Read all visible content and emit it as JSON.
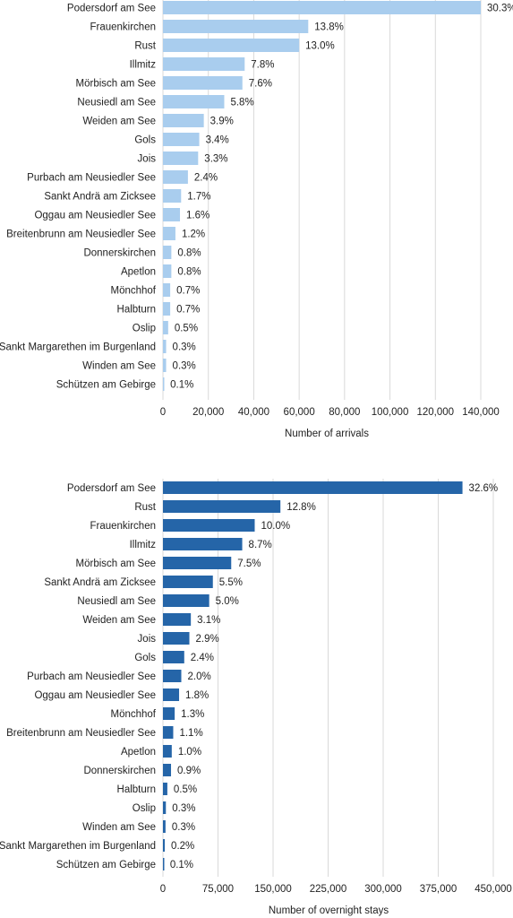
{
  "chart_data": [
    {
      "type": "bar",
      "orientation": "horizontal",
      "xlabel": "Number of arrivals",
      "xlim": [
        0,
        140000
      ],
      "xticks": [
        0,
        20000,
        40000,
        60000,
        80000,
        100000,
        120000,
        140000
      ],
      "xtick_labels": [
        "0",
        "20,000",
        "40,000",
        "60,000",
        "80,000",
        "100,000",
        "120,000",
        "140,000"
      ],
      "grid": true,
      "bar_color": "#a9cdee",
      "categories": [
        "Podersdorf am See",
        "Frauenkirchen",
        "Rust",
        "Illmitz",
        "Mörbisch am See",
        "Neusiedl am See",
        "Weiden am See",
        "Gols",
        "Jois",
        "Purbach am Neusiedler See",
        "Sankt Andrä am Zicksee",
        "Oggau am Neusiedler See",
        "Breitenbrunn am Neusiedler See",
        "Donnerskirchen",
        "Apetlon",
        "Mönchhof",
        "Halbturn",
        "Oslip",
        "Sankt Margarethen im Burgenland",
        "Winden am See",
        "Schützen am Gebirge"
      ],
      "values": [
        140000,
        64000,
        60000,
        36000,
        35000,
        27000,
        18000,
        16000,
        15500,
        11000,
        8000,
        7500,
        5500,
        3700,
        3700,
        3200,
        3200,
        2300,
        1400,
        1400,
        460
      ],
      "labels": [
        "30.3%",
        "13.8%",
        "13.0%",
        "7.8%",
        "7.6%",
        "5.8%",
        "3.9%",
        "3.4%",
        "3.3%",
        "2.4%",
        "1.7%",
        "1.6%",
        "1.2%",
        "0.8%",
        "0.8%",
        "0.7%",
        "0.7%",
        "0.5%",
        "0.3%",
        "0.3%",
        "0.1%"
      ]
    },
    {
      "type": "bar",
      "orientation": "horizontal",
      "xlabel": "Number of overnight stays",
      "xlim": [
        0,
        450000
      ],
      "xticks": [
        0,
        75000,
        150000,
        225000,
        300000,
        375000,
        450000
      ],
      "xtick_labels": [
        "0",
        "75,000",
        "150,000",
        "225,000",
        "300,000",
        "375,000",
        "450,000"
      ],
      "grid": true,
      "bar_color": "#2565a8",
      "categories": [
        "Podersdorf am See",
        "Rust",
        "Frauenkirchen",
        "Illmitz",
        "Mörbisch am See",
        "Sankt Andrä am Zicksee",
        "Neusiedl am See",
        "Weiden am See",
        "Jois",
        "Gols",
        "Purbach am Neusiedler See",
        "Oggau am Neusiedler See",
        "Mönchhof",
        "Breitenbrunn am Neusiedler See",
        "Apetlon",
        "Donnerskirchen",
        "Halbturn",
        "Oslip",
        "Winden am See",
        "Sankt Margarethen im Burgenland",
        "Schützen am Gebirge"
      ],
      "values": [
        408000,
        160000,
        125000,
        108000,
        93000,
        68000,
        63000,
        38000,
        36000,
        29000,
        25000,
        22000,
        16000,
        14000,
        12000,
        11000,
        6000,
        4000,
        3500,
        2500,
        1000
      ],
      "labels": [
        "32.6%",
        "12.8%",
        "10.0%",
        "8.7%",
        "7.5%",
        "5.5%",
        "5.0%",
        "3.1%",
        "2.9%",
        "2.4%",
        "2.0%",
        "1.8%",
        "1.3%",
        "1.1%",
        "1.0%",
        "0.9%",
        "0.5%",
        "0.3%",
        "0.3%",
        "0.2%",
        "0.1%"
      ]
    }
  ]
}
